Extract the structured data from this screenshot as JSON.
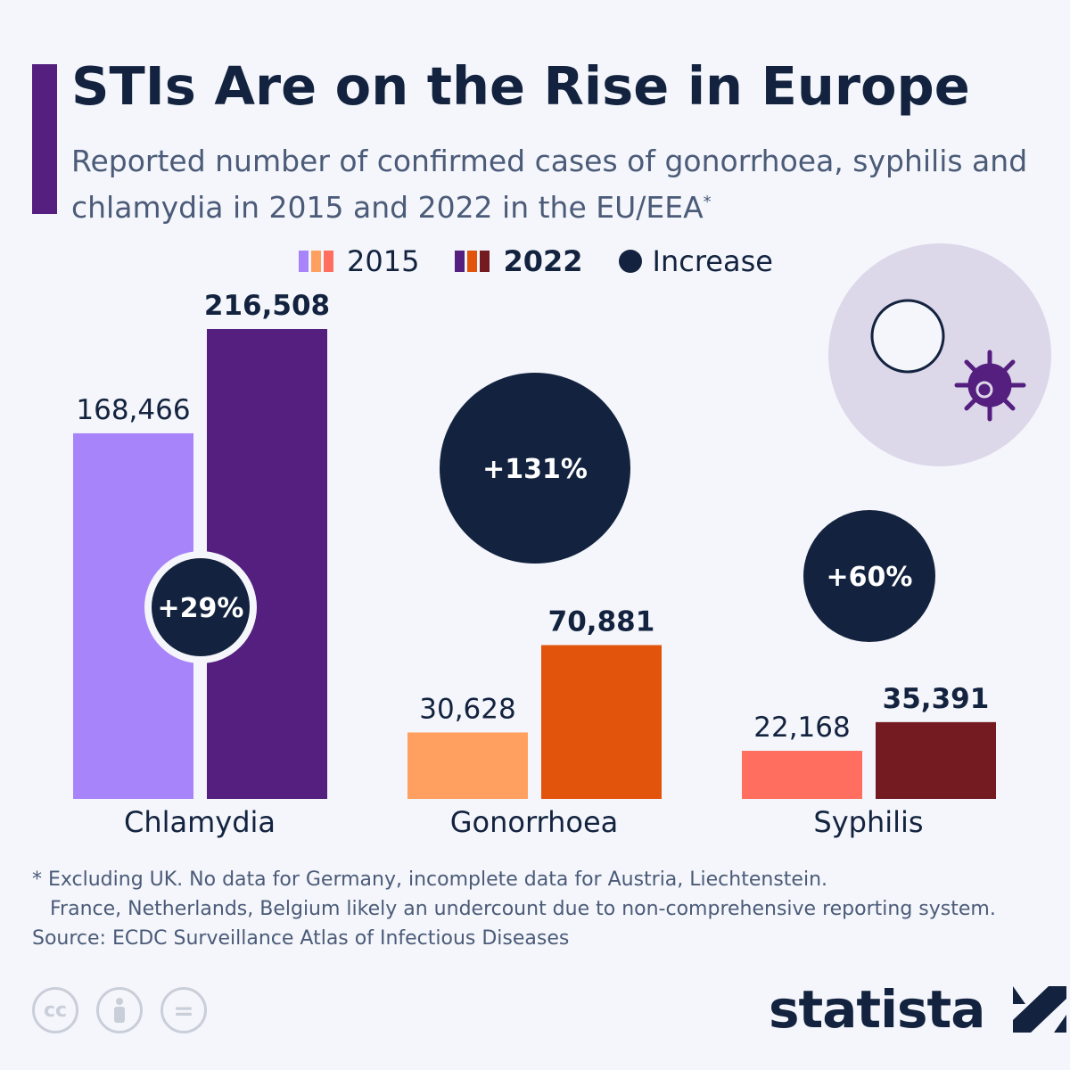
{
  "title": "STIs Are on the Rise in Europe",
  "subtitle": "Reported number of confirmed cases of gonorrhoea, syphilis and chlamydia in 2015 and 2022 in the EU/EEA",
  "subtitle_mark": "*",
  "legend": {
    "y2015": "2015",
    "y2022": "2022",
    "increase": "Increase"
  },
  "colors": {
    "bg": "#f4f6fb",
    "increase": "#13233f",
    "chlamydia": [
      "#a884fb",
      "#541f7e"
    ],
    "gonorrhoea": [
      "#ffa060",
      "#e2540c"
    ],
    "syphilis": [
      "#ff6e5e",
      "#741b22"
    ],
    "icon_bg": "#ddd7ea"
  },
  "chart_data": {
    "type": "bar",
    "categories": [
      "Chlamydia",
      "Gonorrhoea",
      "Syphilis"
    ],
    "series": [
      {
        "name": "2015",
        "values": [
          168466,
          30628,
          22168
        ]
      },
      {
        "name": "2022",
        "values": [
          216508,
          70881,
          35391
        ]
      }
    ],
    "value_labels": {
      "2015": [
        "168,466",
        "30,628",
        "22,168"
      ],
      "2022": [
        "216,508",
        "70,881",
        "35,391"
      ]
    },
    "increase_labels": [
      "+29%",
      "+131%",
      "+60%"
    ],
    "increase": [
      29,
      131,
      60
    ],
    "ylim": [
      0,
      216508
    ],
    "grid": false,
    "legend": "top"
  },
  "footnote": [
    "* Excluding UK. No data for Germany, incomplete data for Austria, Liechtenstein.",
    "France, Netherlands, Belgium likely an undercount due to non-comprehensive reporting system."
  ],
  "source": "Source: ECDC Surveillance Atlas of Infectious Diseases",
  "license_icons": [
    "cc-icon",
    "attribution-icon",
    "no-derivatives-icon"
  ],
  "license_text": {
    "cc": "cc",
    "nd": "="
  },
  "logo": "statista"
}
